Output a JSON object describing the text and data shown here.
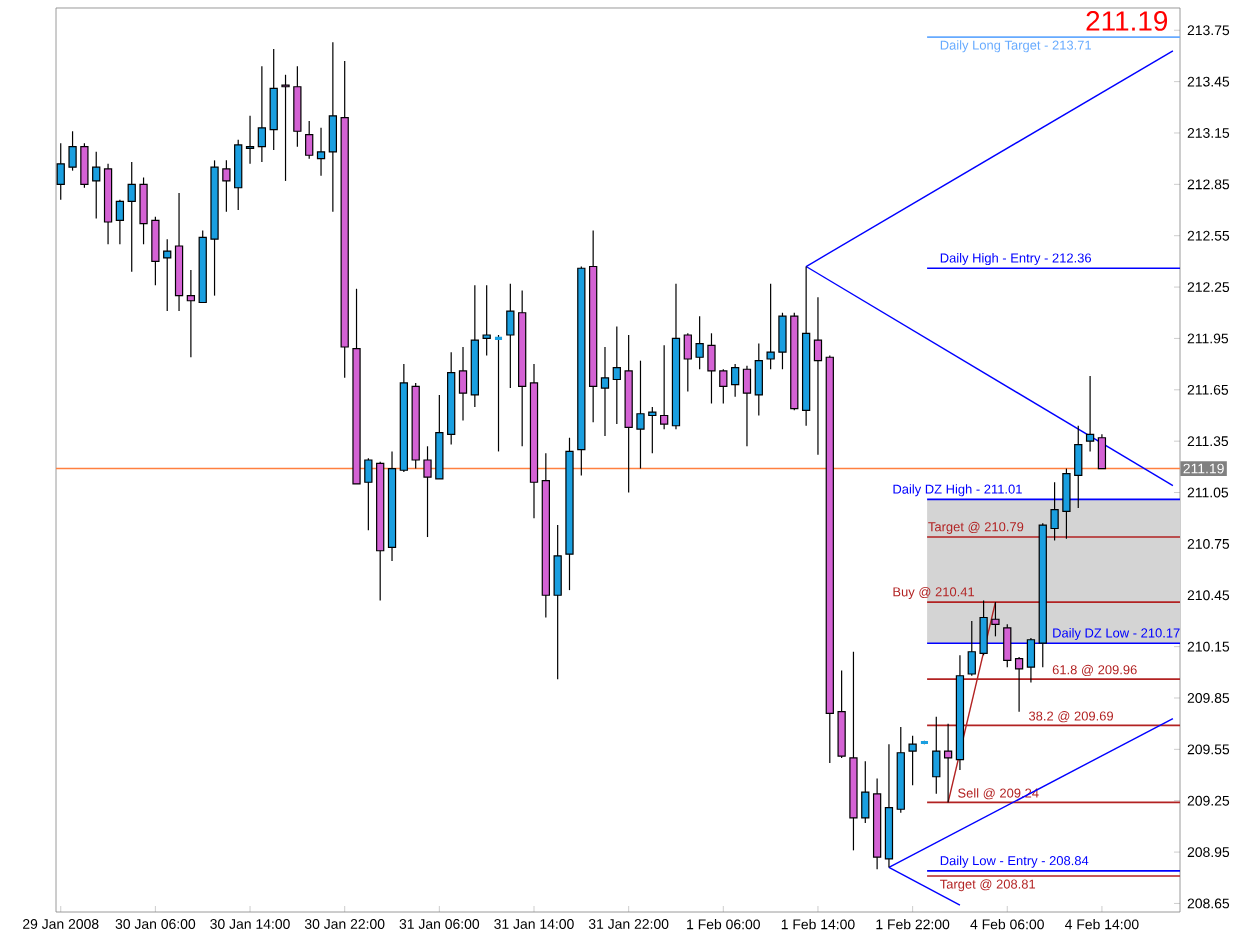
{
  "chart_data": {
    "type": "candlestick",
    "title": "211.19",
    "categories": [
      "29 Jan 2008",
      null,
      null,
      null,
      null,
      null,
      null,
      null,
      "30 Jan 06:00",
      null,
      null,
      null,
      null,
      null,
      null,
      null,
      "30 Jan 14:00",
      null,
      null,
      null,
      null,
      null,
      null,
      null,
      "30 Jan 22:00",
      null,
      null,
      null,
      null,
      null,
      null,
      null,
      "31 Jan 06:00",
      null,
      null,
      null,
      null,
      null,
      null,
      null,
      "31 Jan 14:00",
      null,
      null,
      null,
      null,
      null,
      null,
      null,
      "31 Jan 22:00",
      null,
      null,
      null,
      null,
      null,
      null,
      null,
      "1 Feb 06:00",
      null,
      null,
      null,
      null,
      null,
      null,
      null,
      "1 Feb 14:00",
      null,
      null,
      null,
      null,
      null,
      null,
      null,
      "1 Feb 22:00",
      null,
      null,
      null,
      null,
      null,
      null,
      null,
      "4 Feb 06:00",
      null,
      null,
      null,
      null,
      null,
      null,
      null,
      "4 Feb 14:00",
      null,
      null,
      null,
      null,
      null,
      null
    ],
    "ohlc": [
      [
        212.85,
        213.09,
        212.76,
        212.97
      ],
      [
        212.95,
        213.16,
        212.93,
        213.07
      ],
      [
        213.07,
        213.09,
        212.83,
        212.85
      ],
      [
        212.87,
        213.04,
        212.65,
        212.95
      ],
      [
        212.94,
        212.97,
        212.5,
        212.63
      ],
      [
        212.64,
        212.76,
        212.5,
        212.75
      ],
      [
        212.75,
        212.98,
        212.34,
        212.85
      ],
      [
        212.85,
        212.89,
        212.5,
        212.62
      ],
      [
        212.64,
        212.66,
        212.26,
        212.4
      ],
      [
        212.42,
        212.53,
        212.11,
        212.46
      ],
      [
        212.49,
        212.8,
        212.11,
        212.2
      ],
      [
        212.2,
        212.35,
        211.84,
        212.17
      ],
      [
        212.16,
        212.58,
        212.16,
        212.54
      ],
      [
        212.53,
        212.99,
        212.2,
        212.95
      ],
      [
        212.94,
        212.99,
        212.69,
        212.87
      ],
      [
        212.83,
        213.11,
        212.7,
        213.08
      ],
      [
        213.06,
        213.25,
        212.97,
        213.07
      ],
      [
        213.07,
        213.54,
        212.98,
        213.18
      ],
      [
        213.17,
        213.64,
        213.05,
        213.41
      ],
      [
        213.43,
        213.49,
        212.87,
        213.42
      ],
      [
        213.42,
        213.54,
        213.07,
        213.16
      ],
      [
        213.14,
        213.22,
        213.0,
        213.02
      ],
      [
        213.0,
        213.18,
        212.9,
        213.04
      ],
      [
        213.04,
        213.68,
        212.69,
        213.25
      ],
      [
        213.24,
        213.57,
        211.72,
        211.9
      ],
      [
        211.89,
        212.24,
        211.1,
        211.1
      ],
      [
        211.11,
        211.25,
        210.83,
        211.24
      ],
      [
        211.22,
        211.23,
        210.42,
        210.71
      ],
      [
        210.73,
        211.29,
        210.65,
        211.19
      ],
      [
        211.18,
        211.8,
        211.17,
        211.69
      ],
      [
        211.67,
        211.69,
        211.19,
        211.24
      ],
      [
        211.24,
        211.32,
        210.79,
        211.14
      ],
      [
        211.13,
        211.62,
        211.13,
        211.4
      ],
      [
        211.39,
        211.87,
        211.33,
        211.75
      ],
      [
        211.76,
        211.9,
        211.47,
        211.63
      ],
      [
        211.62,
        212.26,
        211.55,
        211.94
      ],
      [
        211.95,
        212.26,
        211.85,
        211.97
      ],
      [
        211.95,
        211.97,
        211.29,
        211.95
      ],
      [
        211.97,
        212.27,
        211.66,
        212.11
      ],
      [
        212.1,
        212.23,
        211.32,
        211.67
      ],
      [
        211.69,
        211.8,
        210.9,
        211.11
      ],
      [
        211.12,
        211.28,
        210.32,
        210.45
      ],
      [
        210.45,
        210.86,
        209.96,
        210.68
      ],
      [
        210.69,
        211.37,
        210.48,
        211.29
      ],
      [
        211.3,
        212.37,
        211.15,
        212.36
      ],
      [
        212.37,
        212.58,
        211.46,
        211.67
      ],
      [
        211.66,
        211.9,
        211.38,
        211.72
      ],
      [
        211.71,
        212.02,
        211.45,
        211.78
      ],
      [
        211.76,
        211.97,
        211.05,
        211.43
      ],
      [
        211.42,
        211.82,
        211.19,
        211.51
      ],
      [
        211.5,
        211.55,
        211.28,
        211.52
      ],
      [
        211.5,
        211.91,
        211.42,
        211.45
      ],
      [
        211.44,
        212.27,
        211.42,
        211.95
      ],
      [
        211.97,
        211.98,
        211.64,
        211.83
      ],
      [
        211.84,
        212.08,
        211.77,
        211.92
      ],
      [
        211.91,
        211.98,
        211.57,
        211.76
      ],
      [
        211.76,
        211.77,
        211.57,
        211.67
      ],
      [
        211.68,
        211.8,
        211.61,
        211.78
      ],
      [
        211.77,
        211.79,
        211.32,
        211.63
      ],
      [
        211.62,
        211.92,
        211.5,
        211.82
      ],
      [
        211.83,
        212.27,
        211.77,
        211.87
      ],
      [
        211.87,
        212.1,
        211.77,
        212.08
      ],
      [
        212.08,
        212.1,
        211.53,
        211.54
      ],
      [
        211.53,
        212.37,
        211.44,
        211.98
      ],
      [
        211.94,
        212.19,
        211.27,
        211.82
      ],
      [
        211.84,
        211.85,
        209.47,
        209.76
      ],
      [
        209.77,
        210.01,
        209.5,
        209.51
      ],
      [
        209.5,
        210.12,
        208.96,
        209.15
      ],
      [
        209.15,
        209.48,
        209.12,
        209.3
      ],
      [
        209.29,
        209.38,
        208.85,
        208.92
      ],
      [
        208.91,
        209.58,
        208.86,
        209.21
      ],
      [
        209.2,
        209.68,
        209.18,
        209.53
      ],
      [
        209.54,
        209.63,
        209.34,
        209.58
      ],
      [
        209.59,
        209.6,
        209.58,
        209.59
      ],
      [
        209.39,
        209.74,
        209.29,
        209.54
      ],
      [
        209.54,
        209.7,
        209.24,
        209.5
      ],
      [
        209.49,
        210.1,
        209.43,
        209.98
      ],
      [
        209.99,
        210.3,
        209.98,
        210.12
      ],
      [
        210.11,
        210.42,
        210.1,
        210.32
      ],
      [
        210.31,
        210.41,
        210.21,
        210.28
      ],
      [
        210.26,
        210.28,
        210.03,
        210.07
      ],
      [
        210.08,
        210.09,
        209.77,
        210.02
      ],
      [
        210.03,
        210.2,
        209.94,
        210.19
      ],
      [
        210.17,
        210.87,
        210.03,
        210.86
      ],
      [
        210.84,
        211.11,
        210.77,
        210.95
      ],
      [
        210.94,
        211.19,
        210.78,
        211.16
      ],
      [
        211.15,
        211.44,
        210.96,
        211.33
      ],
      [
        211.35,
        211.73,
        211.29,
        211.39
      ],
      [
        211.37,
        211.39,
        211.19,
        211.19
      ],
      null,
      null,
      null,
      null,
      null,
      null
    ],
    "colors": [
      "#1a9fe0",
      "#1a9fe0",
      "#d462d4",
      "#1a9fe0",
      "#d462d4",
      "#1a9fe0",
      "#1a9fe0",
      "#d462d4",
      "#d462d4",
      "#1a9fe0",
      "#d462d4",
      "#d462d4",
      "#1a9fe0",
      "#1a9fe0",
      "#d462d4",
      "#1a9fe0",
      "#1a9fe0",
      "#1a9fe0",
      "#1a9fe0",
      "#d462d4",
      "#d462d4",
      "#d462d4",
      "#1a9fe0",
      "#1a9fe0",
      "#d462d4",
      "#d462d4",
      "#1a9fe0",
      "#d462d4",
      "#1a9fe0",
      "#1a9fe0",
      "#d462d4",
      "#d462d4",
      "#1a9fe0",
      "#1a9fe0",
      "#d462d4",
      "#1a9fe0",
      "#1a9fe0",
      "#1a9fe0",
      "#1a9fe0",
      "#d462d4",
      "#d462d4",
      "#d462d4",
      "#1a9fe0",
      "#1a9fe0",
      "#1a9fe0",
      "#d462d4",
      "#1a9fe0",
      "#1a9fe0",
      "#d462d4",
      "#1a9fe0",
      "#1a9fe0",
      "#d462d4",
      "#1a9fe0",
      "#d462d4",
      "#1a9fe0",
      "#d462d4",
      "#d462d4",
      "#1a9fe0",
      "#d462d4",
      "#1a9fe0",
      "#1a9fe0",
      "#1a9fe0",
      "#d462d4",
      "#1a9fe0",
      "#d462d4",
      "#d462d4",
      "#d462d4",
      "#d462d4",
      "#1a9fe0",
      "#d462d4",
      "#1a9fe0",
      "#1a9fe0",
      "#1a9fe0",
      "#1a9fe0",
      "#1a9fe0",
      "#d462d4",
      "#1a9fe0",
      "#1a9fe0",
      "#1a9fe0",
      "#d462d4",
      "#d462d4",
      "#d462d4",
      "#1a9fe0",
      "#1a9fe0",
      "#1a9fe0",
      "#1a9fe0",
      "#1a9fe0",
      "#1a9fe0",
      "#d462d4",
      null,
      null,
      null,
      null,
      null,
      null
    ],
    "series": [
      {
        "type": "line",
        "color": "#0000ff",
        "values": [
          null,
          null,
          null,
          null,
          null,
          null,
          null,
          null,
          null,
          null,
          null,
          null,
          null,
          null,
          null,
          null,
          null,
          null,
          null,
          null,
          null,
          null,
          null,
          null,
          null,
          null,
          null,
          null,
          null,
          null,
          null,
          null,
          null,
          null,
          null,
          null,
          null,
          null,
          null,
          null,
          null,
          null,
          null,
          null,
          null,
          null,
          null,
          null,
          null,
          null,
          null,
          null,
          null,
          null,
          null,
          null,
          null,
          null,
          null,
          null,
          null,
          null,
          null,
          212.37,
          null,
          null,
          null,
          null,
          null,
          null,
          null,
          null,
          null,
          null,
          null,
          null,
          null,
          null,
          null,
          null,
          null,
          null,
          null,
          null,
          null,
          null,
          null,
          null,
          null,
          null,
          null,
          null,
          null,
          null,
          213.63
        ]
      },
      {
        "type": "line",
        "color": "#0000ff",
        "values": [
          null,
          null,
          null,
          null,
          null,
          null,
          null,
          null,
          null,
          null,
          null,
          null,
          null,
          null,
          null,
          null,
          null,
          null,
          null,
          null,
          null,
          null,
          null,
          null,
          null,
          null,
          null,
          null,
          null,
          null,
          null,
          null,
          null,
          null,
          null,
          null,
          null,
          null,
          null,
          null,
          null,
          null,
          null,
          null,
          null,
          null,
          null,
          null,
          null,
          null,
          null,
          null,
          null,
          null,
          null,
          null,
          null,
          null,
          null,
          null,
          null,
          null,
          null,
          212.37,
          null,
          null,
          null,
          null,
          null,
          null,
          null,
          null,
          null,
          null,
          null,
          null,
          null,
          null,
          null,
          null,
          null,
          null,
          null,
          null,
          null,
          null,
          null,
          null,
          null,
          null,
          null,
          null,
          null,
          null,
          211.09
        ]
      },
      {
        "type": "line",
        "color": "#0000ff",
        "values": [
          null,
          null,
          null,
          null,
          null,
          null,
          null,
          null,
          null,
          null,
          null,
          null,
          null,
          null,
          null,
          null,
          null,
          null,
          null,
          null,
          null,
          null,
          null,
          null,
          null,
          null,
          null,
          null,
          null,
          null,
          null,
          null,
          null,
          null,
          null,
          null,
          null,
          null,
          null,
          null,
          null,
          null,
          null,
          null,
          null,
          null,
          null,
          null,
          null,
          null,
          null,
          null,
          null,
          null,
          null,
          null,
          null,
          null,
          null,
          null,
          null,
          null,
          null,
          null,
          null,
          null,
          null,
          null,
          null,
          null,
          208.86,
          null,
          null,
          null,
          null,
          null,
          null,
          null,
          null,
          null,
          null,
          null,
          null,
          null,
          null,
          null,
          null,
          null,
          null,
          null,
          null,
          null,
          null,
          null,
          209.73
        ]
      },
      {
        "type": "line",
        "color": "#0000ff",
        "values": [
          null,
          null,
          null,
          null,
          null,
          null,
          null,
          null,
          null,
          null,
          null,
          null,
          null,
          null,
          null,
          null,
          null,
          null,
          null,
          null,
          null,
          null,
          null,
          null,
          null,
          null,
          null,
          null,
          null,
          null,
          null,
          null,
          null,
          null,
          null,
          null,
          null,
          null,
          null,
          null,
          null,
          null,
          null,
          null,
          null,
          null,
          null,
          null,
          null,
          null,
          null,
          null,
          null,
          null,
          null,
          null,
          null,
          null,
          null,
          null,
          null,
          null,
          null,
          null,
          null,
          null,
          null,
          null,
          null,
          null,
          208.86,
          null,
          null,
          null,
          null,
          null,
          208.64,
          null,
          null,
          null,
          null,
          null,
          null,
          null,
          null,
          null,
          null,
          null,
          null,
          null,
          null,
          null,
          null,
          null,
          null
        ]
      },
      {
        "type": "line",
        "color": "#b22222",
        "values": [
          null,
          null,
          null,
          null,
          null,
          null,
          null,
          null,
          null,
          null,
          null,
          null,
          null,
          null,
          null,
          null,
          null,
          null,
          null,
          null,
          null,
          null,
          null,
          null,
          null,
          null,
          null,
          null,
          null,
          null,
          null,
          null,
          null,
          null,
          null,
          null,
          null,
          null,
          null,
          null,
          null,
          null,
          null,
          null,
          null,
          null,
          null,
          null,
          null,
          null,
          null,
          null,
          null,
          null,
          null,
          null,
          null,
          null,
          null,
          null,
          null,
          null,
          null,
          null,
          null,
          null,
          null,
          null,
          null,
          null,
          null,
          null,
          null,
          null,
          null,
          209.24,
          null,
          null,
          null,
          210.41,
          null,
          null,
          null,
          null,
          null,
          null,
          null,
          null,
          null,
          null,
          null,
          null,
          null,
          null,
          null
        ]
      }
    ],
    "ylim": [
      208.6,
      213.88
    ],
    "yticks": [
      208.65,
      208.95,
      209.25,
      209.55,
      209.85,
      210.15,
      210.45,
      210.75,
      211.05,
      211.35,
      211.65,
      211.95,
      212.25,
      212.55,
      212.85,
      213.15,
      213.45,
      213.75
    ],
    "bands": [
      {
        "axis": "y",
        "from": 210.17,
        "to": 211.01,
        "color": "#d4d4d4"
      }
    ],
    "ref_lines": [
      {
        "axis": "y",
        "value": 211.19,
        "label": "211.19",
        "color": "#ff8040"
      },
      {
        "axis": "y",
        "value": 213.71,
        "label": "Daily Long Target - 213.71",
        "color": "#66aaff"
      },
      {
        "axis": "y",
        "value": 212.36,
        "label": "Daily High - Entry - 212.36",
        "color": "#0000ff"
      },
      {
        "axis": "y",
        "value": 211.01,
        "label": "Daily DZ High - 211.01",
        "color": "#0000ff"
      },
      {
        "axis": "y",
        "value": 210.79,
        "label": "Target @ 210.79",
        "color": "#b22222"
      },
      {
        "axis": "y",
        "value": 210.41,
        "label": "Buy @ 210.41",
        "color": "#b22222"
      },
      {
        "axis": "y",
        "value": 210.17,
        "label": "Daily DZ Low - 210.17",
        "color": "#0000ff"
      },
      {
        "axis": "y",
        "value": 209.96,
        "label": "61.8 @ 209.96",
        "color": "#b22222"
      },
      {
        "axis": "y",
        "value": 209.69,
        "label": "38.2 @ 209.69",
        "color": "#b22222"
      },
      {
        "axis": "y",
        "value": 209.24,
        "label": "Sell @ 209.24",
        "color": "#b22222"
      },
      {
        "axis": "y",
        "value": 208.84,
        "label": "Daily Low - Entry - 208.84",
        "color": "#0000ff"
      },
      {
        "axis": "y",
        "value": 208.81,
        "label": "Target @ 208.81",
        "color": "#b22222"
      }
    ]
  }
}
